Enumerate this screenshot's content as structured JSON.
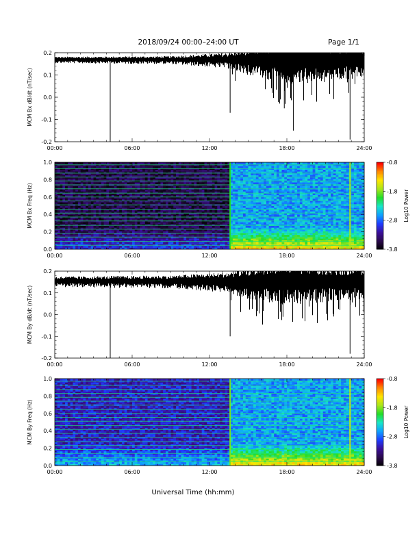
{
  "header": {
    "date_range": "2018/09/24  00:00–24:00 UT",
    "page": "Page 1/1"
  },
  "footer": {
    "xlabel": "Universal Time (hh:mm)"
  },
  "colors": {
    "trace": "#000000",
    "cmap": [
      "#000000",
      "#2a0a4a",
      "#3b0f9a",
      "#1e3cff",
      "#0ea0ff",
      "#18e6c8",
      "#22dd2a",
      "#a8e61a",
      "#ffe600",
      "#ff8a00",
      "#ff0000"
    ]
  },
  "chart_data": [
    {
      "type": "line",
      "id": "bx_dbdt",
      "ylabel": "MCM Bx dB/dt (nT/sec)",
      "xlim": [
        0,
        24
      ],
      "ylim": [
        -0.2,
        0.2
      ],
      "xticks": [
        "00:00",
        "06:00",
        "12:00",
        "18:00",
        "24:00"
      ],
      "yticks": [
        "0.2",
        "0.1",
        "0.0",
        "-0.1",
        "-0.2"
      ],
      "baseline": 0.17,
      "noise_envelope": [
        {
          "t": 0,
          "amp": 0.012
        },
        {
          "t": 9,
          "amp": 0.015
        },
        {
          "t": 13.5,
          "amp": 0.03
        },
        {
          "t": 15,
          "amp": 0.05
        },
        {
          "t": 18,
          "amp": 0.08
        },
        {
          "t": 21,
          "amp": 0.07
        },
        {
          "t": 24,
          "amp": 0.06
        }
      ],
      "spikes": [
        {
          "t": 4.3,
          "y": -0.2
        },
        {
          "t": 13.6,
          "y": -0.07
        },
        {
          "t": 17.8,
          "y": -0.05
        },
        {
          "t": 18.5,
          "y": -0.15
        },
        {
          "t": 22.9,
          "y": -0.19
        }
      ]
    },
    {
      "type": "heatmap",
      "id": "bx_spec",
      "ylabel": "MCM Bx Freq (Hz)",
      "colorbar_label": "Log10 Power",
      "xlim": [
        0,
        24
      ],
      "ylim": [
        0,
        1
      ],
      "zlim": [
        -3.8,
        -0.8
      ],
      "xticks": [
        "00:00",
        "06:00",
        "12:00",
        "18:00",
        "24:00"
      ],
      "yticks": [
        "1.0",
        "0.8",
        "0.6",
        "0.4",
        "0.2",
        "0.0"
      ],
      "cbticks": [
        "-0.8",
        "-1.8",
        "-2.8",
        "-3.8"
      ],
      "interference_lines_hz": [
        0.045,
        0.09,
        0.14,
        0.185,
        0.23,
        0.275,
        0.325,
        0.37,
        0.415,
        0.46,
        0.51,
        0.555,
        0.6,
        0.645,
        0.695,
        0.74,
        0.785,
        0.83,
        0.875,
        0.925,
        0.97
      ],
      "vertical_events": [
        {
          "t": 13.6,
          "level": -2.0
        },
        {
          "t": 22.9,
          "level": -1.7
        }
      ],
      "activity": {
        "quiet_level": -3.5,
        "active_from_t": 13.6,
        "active_level": -2.6
      }
    },
    {
      "type": "line",
      "id": "by_dbdt",
      "ylabel": "MCM By dB/dt (nT/sec)",
      "xlim": [
        0,
        24
      ],
      "ylim": [
        -0.2,
        0.2
      ],
      "xticks": [
        "00:00",
        "06:00",
        "12:00",
        "18:00",
        "24:00"
      ],
      "yticks": [
        "0.2",
        "0.1",
        "0.0",
        "-0.1",
        "-0.2"
      ],
      "baseline": 0.155,
      "noise_envelope": [
        {
          "t": 0,
          "amp": 0.02
        },
        {
          "t": 9,
          "amp": 0.025
        },
        {
          "t": 13.5,
          "amp": 0.04
        },
        {
          "t": 15,
          "amp": 0.06
        },
        {
          "t": 18,
          "amp": 0.08
        },
        {
          "t": 21,
          "amp": 0.07
        },
        {
          "t": 24,
          "amp": 0.06
        }
      ],
      "spikes": [
        {
          "t": 4.3,
          "y": -0.2
        },
        {
          "t": 13.6,
          "y": -0.1
        },
        {
          "t": 17.7,
          "y": -0.01
        },
        {
          "t": 22.9,
          "y": -0.18
        }
      ]
    },
    {
      "type": "heatmap",
      "id": "by_spec",
      "ylabel": "MCM By Freq (Hz)",
      "colorbar_label": "Log10 Power",
      "xlim": [
        0,
        24
      ],
      "ylim": [
        0,
        1
      ],
      "zlim": [
        -3.8,
        -0.8
      ],
      "xticks": [
        "00:00",
        "06:00",
        "12:00",
        "18:00",
        "24:00"
      ],
      "yticks": [
        "1.0",
        "0.8",
        "0.6",
        "0.4",
        "0.2",
        "0.0"
      ],
      "cbticks": [
        "-0.8",
        "-1.8",
        "-2.8",
        "-3.8"
      ],
      "interference_lines_hz": [
        0.045,
        0.09,
        0.14,
        0.185,
        0.23,
        0.275,
        0.325,
        0.37,
        0.415,
        0.46,
        0.51,
        0.555,
        0.6,
        0.645,
        0.695,
        0.74,
        0.785,
        0.83,
        0.875,
        0.925,
        0.97
      ],
      "vertical_events": [
        {
          "t": 13.6,
          "level": -1.8
        },
        {
          "t": 22.9,
          "level": -1.6
        }
      ],
      "activity": {
        "quiet_level": -3.1,
        "active_from_t": 13.6,
        "active_level": -2.6
      }
    }
  ]
}
